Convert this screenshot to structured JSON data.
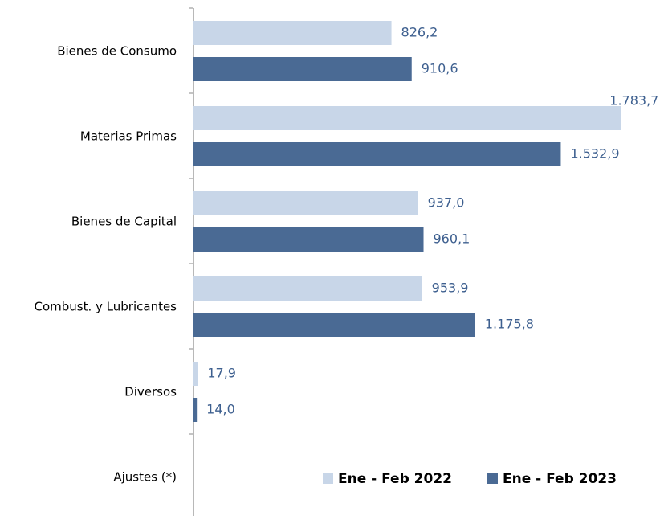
{
  "chart_data": {
    "type": "hbar",
    "categories": [
      "Bienes de Consumo",
      "Materias Primas",
      "Bienes de Capital",
      "Combust. y Lubricantes",
      "Diversos",
      "Ajustes (*)"
    ],
    "series": [
      {
        "name": "Ene - Feb 2022",
        "color": "#c8d6e8",
        "values": [
          826.2,
          1783.7,
          937.0,
          953.9,
          17.9,
          null
        ],
        "value_labels": [
          "826,2",
          "1.783,7",
          "937,0",
          "953,9",
          "17,9",
          null
        ]
      },
      {
        "name": "Ene - Feb 2023",
        "color": "#4a6a94",
        "values": [
          910.6,
          1532.9,
          960.1,
          1175.8,
          14.0,
          null
        ],
        "value_labels": [
          "910,6",
          "1.532,9",
          "960,1",
          "1.175,8",
          "14,0",
          null
        ]
      }
    ],
    "xlim": [
      0,
      1900
    ],
    "legend": "bottom-right"
  }
}
